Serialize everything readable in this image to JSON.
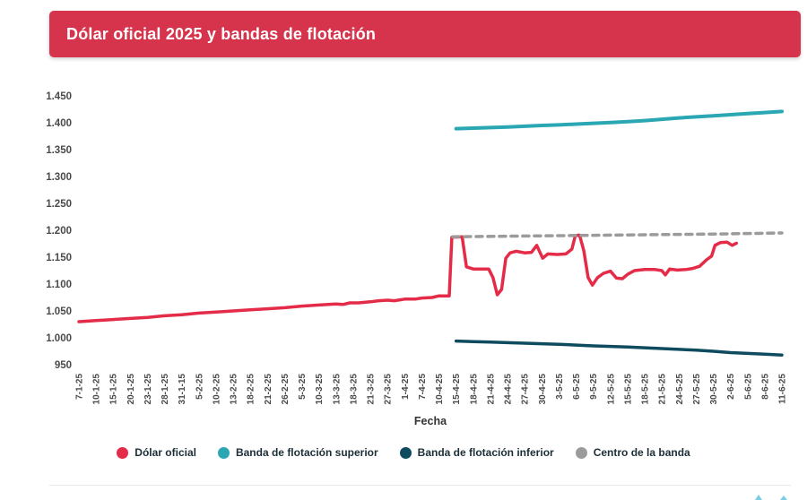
{
  "header": {
    "title": "Dólar oficial 2025 y bandas de flotación",
    "background_color": "#d6344c",
    "title_color": "#ffffff"
  },
  "colors": {
    "axis_text": "#4a4a4a",
    "axis_title": "#333333",
    "legend_text": "#1c2e38",
    "footer_rule": "#e9e9e9",
    "corner_glyph": "#63c4dd"
  },
  "legend": {
    "items": [
      {
        "label": "Dólar oficial",
        "color": "#e42c48"
      },
      {
        "label": "Banda de flotación superior",
        "color": "#2aa7b3"
      },
      {
        "label": "Banda de flotación inferior",
        "color": "#0e4b5e"
      },
      {
        "label": "Centro de la banda",
        "color": "#9b9b9b"
      }
    ]
  },
  "chart_data": {
    "type": "line",
    "title": "Dólar oficial 2025 y bandas de flotación",
    "xlabel": "Fecha",
    "ylabel": "",
    "ylim": [
      950,
      1450
    ],
    "grid": false,
    "legend_position": "bottom",
    "y_ticks": [
      {
        "label": "1.450",
        "value": 1450
      },
      {
        "label": "1.400",
        "value": 1400
      },
      {
        "label": "1.350",
        "value": 1350
      },
      {
        "label": "1.300",
        "value": 1300
      },
      {
        "label": "1.250",
        "value": 1250
      },
      {
        "label": "1.200",
        "value": 1200
      },
      {
        "label": "1.150",
        "value": 1150
      },
      {
        "label": "1.100",
        "value": 1100
      },
      {
        "label": "1.050",
        "value": 1050
      },
      {
        "label": "1.000",
        "value": 1000
      },
      {
        "label": "950",
        "value": 950
      }
    ],
    "x_labels": [
      "7-1-25",
      "10-1-25",
      "15-1-25",
      "20-1-25",
      "23-1-25",
      "28-1-25",
      "31-1-15",
      "5-2-25",
      "10-2-25",
      "13-2-25",
      "18-2-25",
      "21-2-25",
      "26-2-25",
      "5-3-25",
      "10-3-25",
      "13-3-25",
      "18-3-25",
      "21-3-25",
      "27-3-25",
      "1-4-25",
      "7-4-25",
      "10-4-25",
      "15-4-25",
      "18-4-25",
      "21-4-25",
      "24-4-25",
      "27-4-25",
      "30-4-25",
      "3-5-25",
      "6-5-25",
      "9-5-25",
      "12-5-25",
      "15-5-25",
      "18-5-25",
      "21-5-25",
      "24-5-25",
      "27-5-25",
      "30-5-25",
      "2-6-25",
      "5-6-25",
      "8-6-25",
      "11-6-25"
    ],
    "series": [
      {
        "name": "Dólar oficial",
        "color": "#e42c48",
        "width": 3.5,
        "dash": null,
        "points": [
          [
            0,
            1030
          ],
          [
            1,
            1032
          ],
          [
            2,
            1034
          ],
          [
            3,
            1036
          ],
          [
            4,
            1038
          ],
          [
            5,
            1041
          ],
          [
            6,
            1043
          ],
          [
            7,
            1046
          ],
          [
            8,
            1048
          ],
          [
            9,
            1050
          ],
          [
            10,
            1052
          ],
          [
            11,
            1054
          ],
          [
            12,
            1056
          ],
          [
            13,
            1059
          ],
          [
            14,
            1061
          ],
          [
            15,
            1063
          ],
          [
            15.4,
            1062
          ],
          [
            15.8,
            1065
          ],
          [
            16.3,
            1065
          ],
          [
            17,
            1067
          ],
          [
            17.5,
            1069
          ],
          [
            18,
            1070
          ],
          [
            18.4,
            1069
          ],
          [
            19,
            1072
          ],
          [
            19.6,
            1072
          ],
          [
            20,
            1074
          ],
          [
            20.6,
            1075
          ],
          [
            21,
            1078
          ],
          [
            21.6,
            1078
          ],
          [
            21.75,
            1187
          ],
          [
            22.35,
            1188
          ],
          [
            22.6,
            1132
          ],
          [
            23,
            1128
          ],
          [
            23.9,
            1128
          ],
          [
            24.15,
            1112
          ],
          [
            24.4,
            1080
          ],
          [
            24.65,
            1090
          ],
          [
            24.9,
            1148
          ],
          [
            25.15,
            1158
          ],
          [
            25.5,
            1161
          ],
          [
            26,
            1158
          ],
          [
            26.4,
            1159
          ],
          [
            26.7,
            1172
          ],
          [
            27.05,
            1148
          ],
          [
            27.35,
            1156
          ],
          [
            27.9,
            1155
          ],
          [
            28.4,
            1156
          ],
          [
            28.75,
            1165
          ],
          [
            28.95,
            1190
          ],
          [
            29.2,
            1191
          ],
          [
            29.45,
            1162
          ],
          [
            29.7,
            1112
          ],
          [
            29.95,
            1098
          ],
          [
            30.25,
            1112
          ],
          [
            30.6,
            1120
          ],
          [
            31,
            1124
          ],
          [
            31.35,
            1111
          ],
          [
            31.7,
            1110
          ],
          [
            32,
            1118
          ],
          [
            32.4,
            1125
          ],
          [
            33,
            1127
          ],
          [
            33.6,
            1127
          ],
          [
            34,
            1125
          ],
          [
            34.2,
            1117
          ],
          [
            34.45,
            1128
          ],
          [
            34.9,
            1126
          ],
          [
            35.4,
            1127
          ],
          [
            35.8,
            1129
          ],
          [
            36.2,
            1133
          ],
          [
            36.6,
            1145
          ],
          [
            36.9,
            1152
          ],
          [
            37.1,
            1172
          ],
          [
            37.4,
            1177
          ],
          [
            37.8,
            1178
          ],
          [
            38.1,
            1172
          ],
          [
            38.35,
            1176
          ]
        ]
      },
      {
        "name": "Banda de flotación superior",
        "color": "#2aa7b3",
        "width": 4,
        "dash": null,
        "points": [
          [
            22,
            1389
          ],
          [
            23,
            1390
          ],
          [
            24,
            1391
          ],
          [
            25,
            1392
          ],
          [
            26,
            1393.5
          ],
          [
            27,
            1395
          ],
          [
            28,
            1396
          ],
          [
            29,
            1397.5
          ],
          [
            30,
            1399
          ],
          [
            31,
            1400.5
          ],
          [
            32,
            1402
          ],
          [
            33,
            1404
          ],
          [
            34,
            1406.5
          ],
          [
            35,
            1409
          ],
          [
            36,
            1411
          ],
          [
            37,
            1413
          ],
          [
            38,
            1415
          ],
          [
            39,
            1417
          ],
          [
            40,
            1419
          ],
          [
            41,
            1421
          ]
        ]
      },
      {
        "name": "Banda de flotación inferior",
        "color": "#0e4b5e",
        "width": 3.5,
        "dash": null,
        "points": [
          [
            22,
            994
          ],
          [
            23,
            993
          ],
          [
            24,
            992
          ],
          [
            25,
            991
          ],
          [
            26,
            990
          ],
          [
            27,
            989
          ],
          [
            28,
            988
          ],
          [
            29,
            986.5
          ],
          [
            30,
            985
          ],
          [
            31,
            984
          ],
          [
            32,
            983
          ],
          [
            33,
            981.5
          ],
          [
            34,
            980
          ],
          [
            35,
            978.5
          ],
          [
            36,
            977
          ],
          [
            37,
            975
          ],
          [
            38,
            972.5
          ],
          [
            39,
            971
          ],
          [
            40,
            969.5
          ],
          [
            41,
            968
          ]
        ]
      },
      {
        "name": "Centro de la banda",
        "color": "#9b9b9b",
        "width": 3.5,
        "dash": "7 6",
        "points": [
          [
            21.8,
            1188
          ],
          [
            25,
            1189
          ],
          [
            28,
            1190
          ],
          [
            31,
            1191
          ],
          [
            34,
            1192
          ],
          [
            37,
            1193
          ],
          [
            39,
            1194
          ],
          [
            41,
            1195
          ]
        ]
      }
    ]
  }
}
